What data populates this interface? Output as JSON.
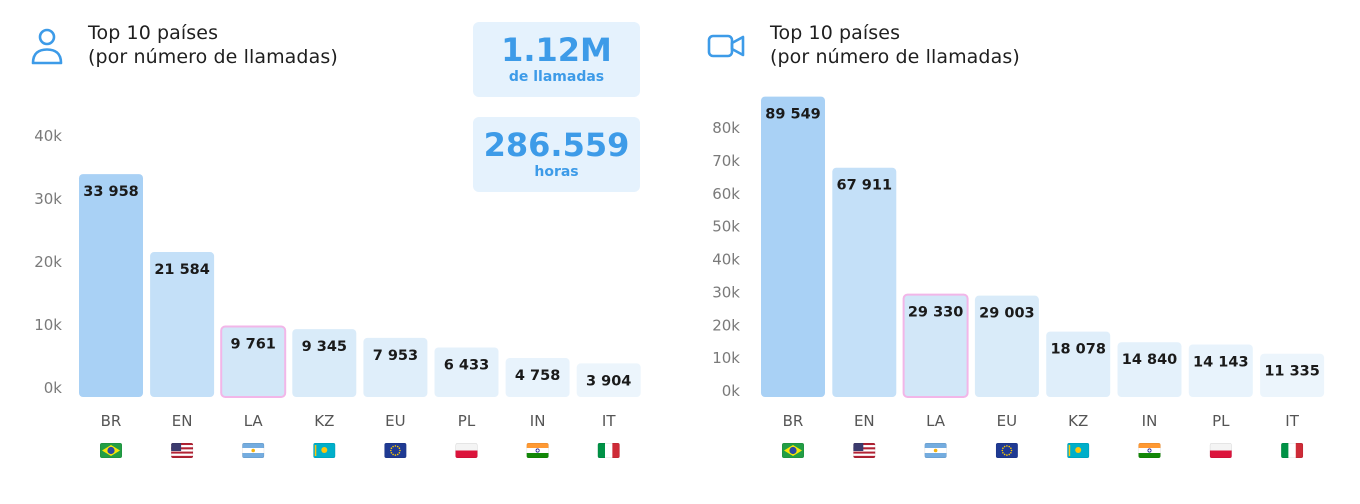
{
  "panels": [
    {
      "icon": "user-icon",
      "title_line1": "Top 10 países",
      "title_line2": "(por número de llamadas)",
      "stats": [
        {
          "value": "1.12M",
          "label": "de llamadas"
        },
        {
          "value": "286.559",
          "label": "horas"
        }
      ]
    },
    {
      "icon": "video-camera-icon",
      "title_line1": "Top 10 países",
      "title_line2": "(por número de llamadas)"
    }
  ],
  "chart_data": [
    {
      "type": "bar",
      "categories": [
        "BR",
        "EN",
        "LA",
        "KZ",
        "EU",
        "PL",
        "IN",
        "IT"
      ],
      "values": [
        33958,
        21584,
        9761,
        9345,
        7953,
        6433,
        4758,
        3904
      ],
      "value_labels": [
        "33 958",
        "21 584",
        "9 761",
        "9 345",
        "7 953",
        "6 433",
        "4 758",
        "3 904"
      ],
      "flags": [
        "flag-br-icon",
        "flag-us-icon",
        "flag-ar-icon",
        "flag-kz-icon",
        "flag-eu-icon",
        "flag-pl-icon",
        "flag-in-icon",
        "flag-it-icon"
      ],
      "yticks": [
        0,
        10000,
        20000,
        30000,
        40000
      ],
      "ytick_labels": [
        "0k",
        "10k",
        "20k",
        "30k",
        "40k"
      ],
      "ylim": [
        0,
        40000
      ],
      "highlight": "LA",
      "grid": false
    },
    {
      "type": "bar",
      "categories": [
        "BR",
        "EN",
        "LA",
        "EU",
        "KZ",
        "IN",
        "PL",
        "IT"
      ],
      "values": [
        89549,
        67911,
        29330,
        29003,
        18078,
        14840,
        14143,
        11335
      ],
      "value_labels": [
        "89 549",
        "67 911",
        "29 330",
        "29 003",
        "18 078",
        "14 840",
        "14 143",
        "11 335"
      ],
      "flags": [
        "flag-br-icon",
        "flag-us-icon",
        "flag-ar-icon",
        "flag-eu-icon",
        "flag-kz-icon",
        "flag-in-icon",
        "flag-pl-icon",
        "flag-it-icon"
      ],
      "yticks": [
        0,
        10000,
        20000,
        30000,
        40000,
        50000,
        60000,
        70000,
        80000
      ],
      "ytick_labels": [
        "0k",
        "10k",
        "20k",
        "30k",
        "40k",
        "50k",
        "60k",
        "70k",
        "80k"
      ],
      "ylim": [
        0,
        80000
      ],
      "highlight": "LA",
      "grid": false
    }
  ],
  "colors": {
    "accent": "#3d9be8",
    "bar_gradient": [
      "#a9d1f5",
      "#c4e0f8",
      "#d2e7f8",
      "#d9ebf9",
      "#dfeefa",
      "#e4f1fb",
      "#e8f3fc",
      "#ecf5fc"
    ],
    "highlight_border": "#f2b6e8"
  }
}
